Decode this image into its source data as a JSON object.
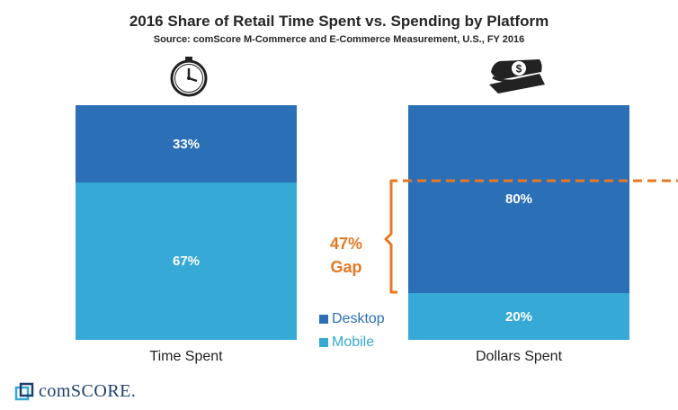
{
  "title": "2016 Share of Retail Time Spent vs. Spending by Platform",
  "subtitle": "Source: comScore M-Commerce and E-Commerce Measurement, U.S., FY 2016",
  "icons": {
    "left": "clock-icon",
    "right": "money-icon",
    "logo": "comscore-logo-icon"
  },
  "colors": {
    "desktop": "#2b70b7",
    "mobile": "#36a9d6",
    "gap": "#e87722"
  },
  "chart_data": {
    "type": "bar",
    "stacked": true,
    "categories": [
      "Time Spent",
      "Dollars Spent"
    ],
    "series": [
      {
        "name": "Desktop",
        "values": [
          33,
          80
        ]
      },
      {
        "name": "Mobile",
        "values": [
          67,
          20
        ]
      }
    ],
    "data_labels": {
      "Desktop": [
        "33%",
        "80%"
      ],
      "Mobile": [
        "67%",
        "20%"
      ]
    },
    "annotation": {
      "line1": "47%",
      "line2": "Gap",
      "value": 47
    },
    "legend": [
      "Desktop",
      "Mobile"
    ],
    "ylim": [
      0,
      100
    ]
  },
  "logo": {
    "text": "comSCORE."
  }
}
